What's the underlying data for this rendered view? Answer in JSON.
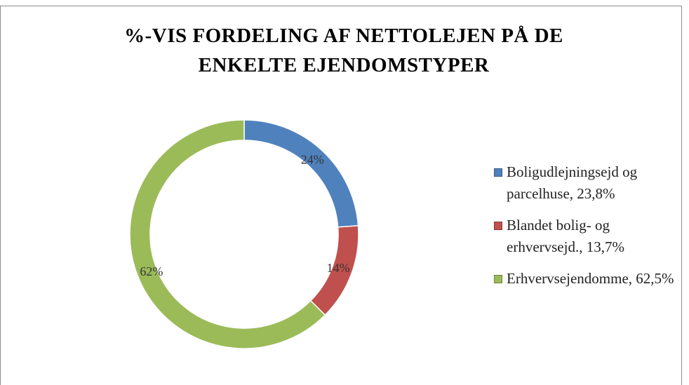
{
  "chart_data": {
    "type": "doughnut",
    "title": "%-VIS FORDELING AF NETTOLEJEN PÅ DE ENKELTE EJENDOMSTYPER",
    "categories": [
      "Boligudlejningsejd og parcelhuse, 23,8%",
      "Blandet bolig- og erhvervsejd., 13,7%",
      "Erhvervsejendomme, 62,5%"
    ],
    "values": [
      23.8,
      13.7,
      62.5
    ],
    "value_labels": [
      "24%",
      "14%",
      "62%"
    ],
    "colors": [
      "#4f81bd",
      "#c0504d",
      "#9bbb59"
    ],
    "legend": "right"
  }
}
